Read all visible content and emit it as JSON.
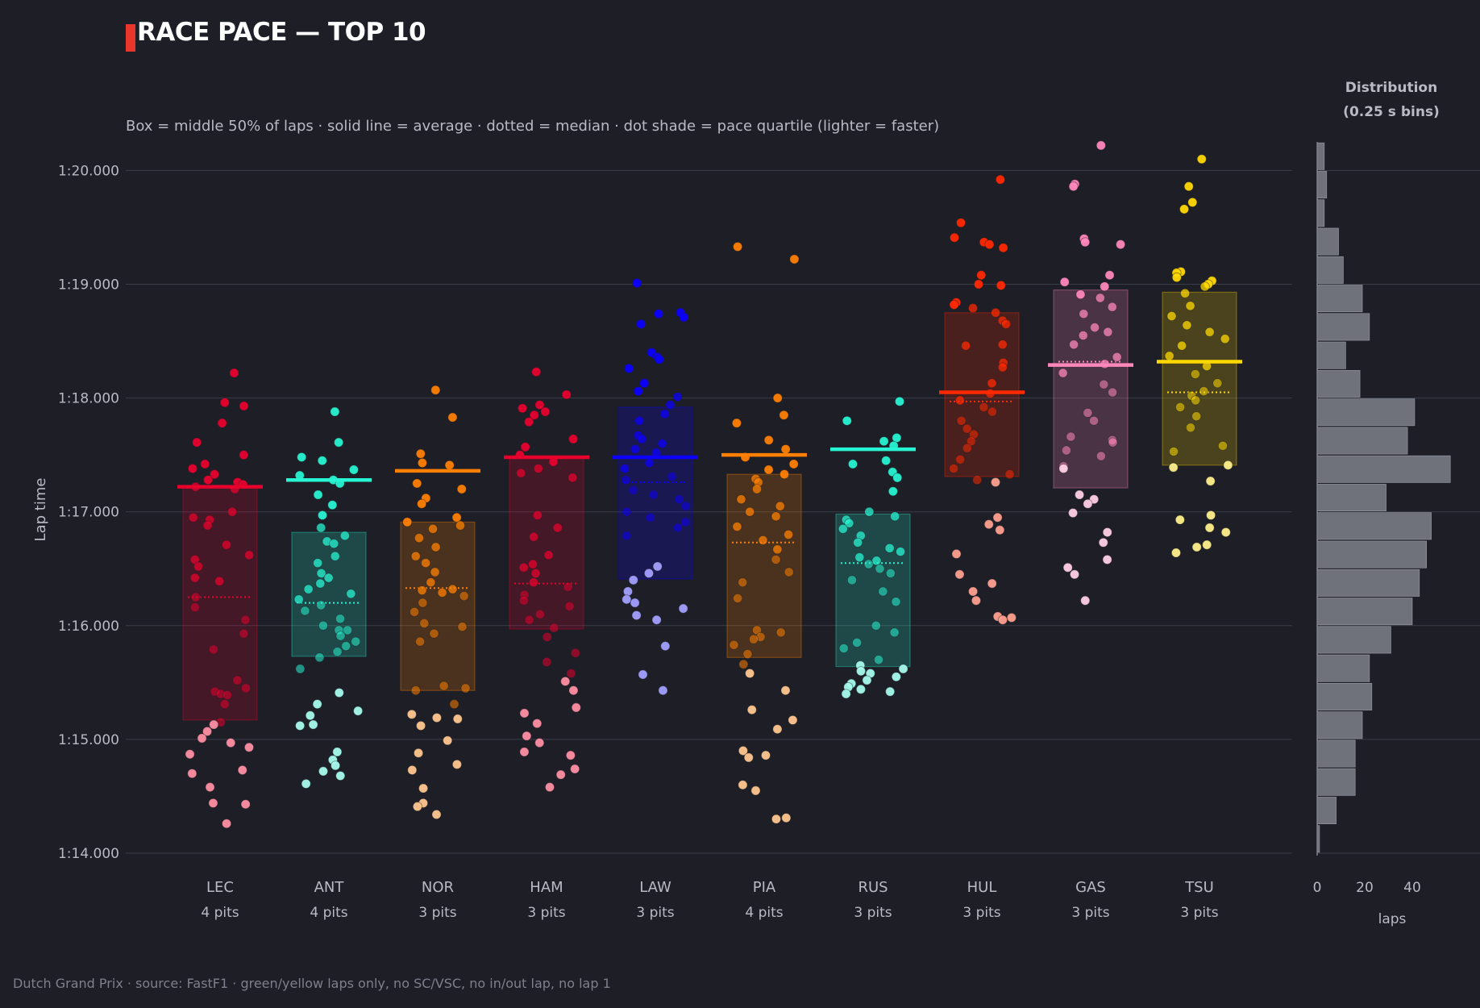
{
  "title": "RACE PACE — TOP 10",
  "subtitle": "Box = middle 50% of laps · solid line = average · dotted = median · dot shade = pace quartile (lighter = faster)",
  "distribution": {
    "title_line1": "Distribution",
    "title_line2": "(0.25 s bins)",
    "xlabel": "laps",
    "xticks": [
      "0",
      "20",
      "40"
    ],
    "accent": "#6f717b"
  },
  "footer": "Dutch Grand Prix  ·  source: FastF1  ·  green/yellow laps only, no SC/VSC, no in/out lap, no lap 1",
  "chart_data": {
    "type": "scatter",
    "ylabel": "Lap time",
    "ylim": [
      73.8,
      80.25
    ],
    "yticks": [
      {
        "value": 74,
        "label": "1:14.000"
      },
      {
        "value": 75,
        "label": "1:15.000"
      },
      {
        "value": 76,
        "label": "1:16.000"
      },
      {
        "value": 77,
        "label": "1:17.000"
      },
      {
        "value": 78,
        "label": "1:18.000"
      },
      {
        "value": 79,
        "label": "1:19.000"
      },
      {
        "value": 80,
        "label": "1:20.000"
      }
    ],
    "drivers": [
      {
        "code": "LEC",
        "pits": "4 pits",
        "color": "#e8002d",
        "light": "#ff8fa3",
        "q1": 75.17,
        "q3": 77.22,
        "mean": 77.22,
        "median": 76.25,
        "laps": [
          78.22,
          77.96,
          77.93,
          77.78,
          77.61,
          77.5,
          77.42,
          77.38,
          77.33,
          77.28,
          77.26,
          77.24,
          77.22,
          77.2,
          77.0,
          76.95,
          76.93,
          76.88,
          76.71,
          76.62,
          76.58,
          76.52,
          76.42,
          76.39,
          76.25,
          76.16,
          76.05,
          75.93,
          75.79,
          75.52,
          75.45,
          75.42,
          75.4,
          75.39,
          75.31,
          75.15,
          75.13,
          75.07,
          75.01,
          74.97,
          74.93,
          74.87,
          74.73,
          74.7,
          74.58,
          74.44,
          74.43,
          74.26
        ]
      },
      {
        "code": "ANT",
        "pits": "4 pits",
        "color": "#27f4d2",
        "light": "#a6fbed",
        "q1": 75.73,
        "q3": 76.82,
        "mean": 77.28,
        "median": 76.2,
        "laps": [
          77.88,
          77.61,
          77.48,
          77.45,
          77.37,
          77.32,
          77.28,
          77.25,
          77.15,
          77.06,
          76.97,
          76.86,
          76.79,
          76.74,
          76.72,
          76.61,
          76.55,
          76.46,
          76.42,
          76.37,
          76.32,
          76.28,
          76.23,
          76.18,
          76.13,
          76.06,
          76.0,
          75.96,
          75.96,
          75.91,
          75.86,
          75.82,
          75.77,
          75.72,
          75.62,
          75.41,
          75.31,
          75.25,
          75.21,
          75.13,
          75.12,
          74.89,
          74.82,
          74.77,
          74.72,
          74.68,
          74.61
        ]
      },
      {
        "code": "NOR",
        "pits": "3 pits",
        "color": "#ff8000",
        "light": "#ffc78f",
        "q1": 75.43,
        "q3": 76.91,
        "mean": 77.36,
        "median": 76.33,
        "laps": [
          78.07,
          77.83,
          77.51,
          77.43,
          77.41,
          77.25,
          77.2,
          77.12,
          77.07,
          76.95,
          76.91,
          76.88,
          76.85,
          76.77,
          76.69,
          76.61,
          76.55,
          76.47,
          76.38,
          76.32,
          76.31,
          76.29,
          76.26,
          76.2,
          76.12,
          76.02,
          75.99,
          75.93,
          75.86,
          75.47,
          75.45,
          75.43,
          75.31,
          75.22,
          75.19,
          75.18,
          75.12,
          74.99,
          74.88,
          74.78,
          74.73,
          74.57,
          74.44,
          74.41,
          74.34
        ]
      },
      {
        "code": "HAM",
        "pits": "3 pits",
        "color": "#e8002d",
        "light": "#ff8fa3",
        "q1": 75.97,
        "q3": 77.48,
        "mean": 77.48,
        "median": 76.37,
        "laps": [
          78.23,
          78.03,
          77.94,
          77.91,
          77.88,
          77.85,
          77.79,
          77.64,
          77.57,
          77.5,
          77.44,
          77.38,
          77.34,
          77.3,
          76.97,
          76.86,
          76.78,
          76.62,
          76.54,
          76.51,
          76.46,
          76.38,
          76.34,
          76.27,
          76.22,
          76.17,
          76.1,
          76.05,
          75.98,
          75.9,
          75.76,
          75.68,
          75.58,
          75.51,
          75.43,
          75.28,
          75.23,
          75.14,
          75.03,
          74.97,
          74.89,
          74.86,
          74.74,
          74.69,
          74.58
        ]
      },
      {
        "code": "LAW",
        "pits": "3 pits",
        "color": "#0c00ff",
        "light": "#a3a0ff",
        "q1": 76.41,
        "q3": 77.92,
        "mean": 77.48,
        "median": 77.26,
        "laps": [
          79.01,
          78.75,
          78.74,
          78.71,
          78.65,
          78.4,
          78.36,
          78.34,
          78.26,
          78.13,
          78.06,
          78.01,
          77.94,
          77.86,
          77.8,
          77.67,
          77.64,
          77.6,
          77.55,
          77.52,
          77.43,
          77.38,
          77.31,
          77.28,
          77.19,
          77.15,
          77.11,
          77.05,
          77.0,
          76.95,
          76.91,
          76.86,
          76.79,
          76.52,
          76.46,
          76.4,
          76.3,
          76.23,
          76.2,
          76.15,
          76.09,
          76.05,
          75.82,
          75.57,
          75.43
        ]
      },
      {
        "code": "PIA",
        "pits": "4 pits",
        "color": "#ff8000",
        "light": "#ffc78f",
        "q1": 75.72,
        "q3": 77.33,
        "mean": 77.5,
        "median": 76.73,
        "laps": [
          79.33,
          79.22,
          78.0,
          77.85,
          77.78,
          77.63,
          77.55,
          77.48,
          77.42,
          77.37,
          77.33,
          77.29,
          77.26,
          77.2,
          77.11,
          77.05,
          77.0,
          76.96,
          76.87,
          76.8,
          76.75,
          76.67,
          76.58,
          76.47,
          76.38,
          76.24,
          75.96,
          75.94,
          75.9,
          75.88,
          75.83,
          75.75,
          75.66,
          75.58,
          75.43,
          75.26,
          75.17,
          75.09,
          74.9,
          74.86,
          74.84,
          74.6,
          74.55,
          74.31,
          74.3
        ]
      },
      {
        "code": "RUS",
        "pits": "3 pits",
        "color": "#27f4d2",
        "light": "#a6fbed",
        "q1": 75.64,
        "q3": 76.98,
        "mean": 77.55,
        "median": 76.55,
        "laps": [
          77.97,
          77.8,
          77.65,
          77.62,
          77.58,
          77.45,
          77.42,
          77.35,
          77.3,
          77.18,
          77.0,
          76.96,
          76.93,
          76.9,
          76.85,
          76.79,
          76.73,
          76.68,
          76.65,
          76.6,
          76.57,
          76.54,
          76.5,
          76.46,
          76.4,
          76.3,
          76.21,
          76.0,
          75.94,
          75.85,
          75.8,
          75.7,
          75.65,
          75.62,
          75.6,
          75.58,
          75.55,
          75.52,
          75.49,
          75.46,
          75.44,
          75.42,
          75.4
        ]
      },
      {
        "code": "HUL",
        "pits": "3 pits",
        "color": "#ff2800",
        "light": "#ffa08f",
        "q1": 77.31,
        "q3": 78.75,
        "mean": 78.05,
        "median": 77.97,
        "laps": [
          79.92,
          79.54,
          79.41,
          79.37,
          79.35,
          79.32,
          79.08,
          79.0,
          78.99,
          78.84,
          78.82,
          78.79,
          78.75,
          78.68,
          78.65,
          78.47,
          78.46,
          78.31,
          78.27,
          78.13,
          78.04,
          77.98,
          77.92,
          77.88,
          77.8,
          77.73,
          77.68,
          77.62,
          77.56,
          77.46,
          77.38,
          77.33,
          77.28,
          77.26,
          76.95,
          76.89,
          76.84,
          76.63,
          76.45,
          76.37,
          76.3,
          76.22,
          76.08,
          76.07,
          76.05
        ]
      },
      {
        "code": "GAS",
        "pits": "3 pits",
        "color": "#ff87bc",
        "light": "#ffd0e5",
        "q1": 77.21,
        "q3": 78.95,
        "mean": 78.29,
        "median": 78.32,
        "laps": [
          80.22,
          79.88,
          79.86,
          79.4,
          79.37,
          79.35,
          79.08,
          79.02,
          78.98,
          78.91,
          78.88,
          78.8,
          78.74,
          78.62,
          78.58,
          78.55,
          78.47,
          78.36,
          78.3,
          78.22,
          78.12,
          78.05,
          77.87,
          77.8,
          77.66,
          77.63,
          77.61,
          77.54,
          77.49,
          77.4,
          77.38,
          77.15,
          77.11,
          77.07,
          76.99,
          76.82,
          76.73,
          76.58,
          76.51,
          76.45,
          76.22
        ]
      },
      {
        "code": "TSU",
        "pits": "3 pits",
        "color": "#ffd800",
        "light": "#fff08a",
        "q1": 77.41,
        "q3": 78.93,
        "mean": 78.32,
        "median": 78.05,
        "laps": [
          80.1,
          79.86,
          79.72,
          79.66,
          79.11,
          79.1,
          79.06,
          79.03,
          79.0,
          78.98,
          78.92,
          78.81,
          78.72,
          78.64,
          78.58,
          78.52,
          78.46,
          78.37,
          78.28,
          78.21,
          78.13,
          78.06,
          78.02,
          77.98,
          77.92,
          77.84,
          77.74,
          77.58,
          77.53,
          77.41,
          77.39,
          77.27,
          76.97,
          76.93,
          76.86,
          76.82,
          76.71,
          76.69,
          76.64
        ]
      }
    ],
    "histogram": {
      "bin_width": 0.25,
      "xlim": [
        0,
        57
      ],
      "bins": [
        {
          "start": 74.0,
          "count": 1
        },
        {
          "start": 74.25,
          "count": 8
        },
        {
          "start": 74.5,
          "count": 16
        },
        {
          "start": 74.75,
          "count": 16
        },
        {
          "start": 75.0,
          "count": 19
        },
        {
          "start": 75.25,
          "count": 23
        },
        {
          "start": 75.5,
          "count": 22
        },
        {
          "start": 75.75,
          "count": 31
        },
        {
          "start": 76.0,
          "count": 40
        },
        {
          "start": 76.25,
          "count": 43
        },
        {
          "start": 76.5,
          "count": 46
        },
        {
          "start": 76.75,
          "count": 48
        },
        {
          "start": 77.0,
          "count": 29
        },
        {
          "start": 77.25,
          "count": 56
        },
        {
          "start": 77.5,
          "count": 38
        },
        {
          "start": 77.75,
          "count": 41
        },
        {
          "start": 78.0,
          "count": 18
        },
        {
          "start": 78.25,
          "count": 12
        },
        {
          "start": 78.5,
          "count": 22
        },
        {
          "start": 78.75,
          "count": 19
        },
        {
          "start": 79.0,
          "count": 11
        },
        {
          "start": 79.25,
          "count": 9
        },
        {
          "start": 79.5,
          "count": 3
        },
        {
          "start": 79.75,
          "count": 4
        },
        {
          "start": 80.0,
          "count": 3
        }
      ]
    }
  }
}
